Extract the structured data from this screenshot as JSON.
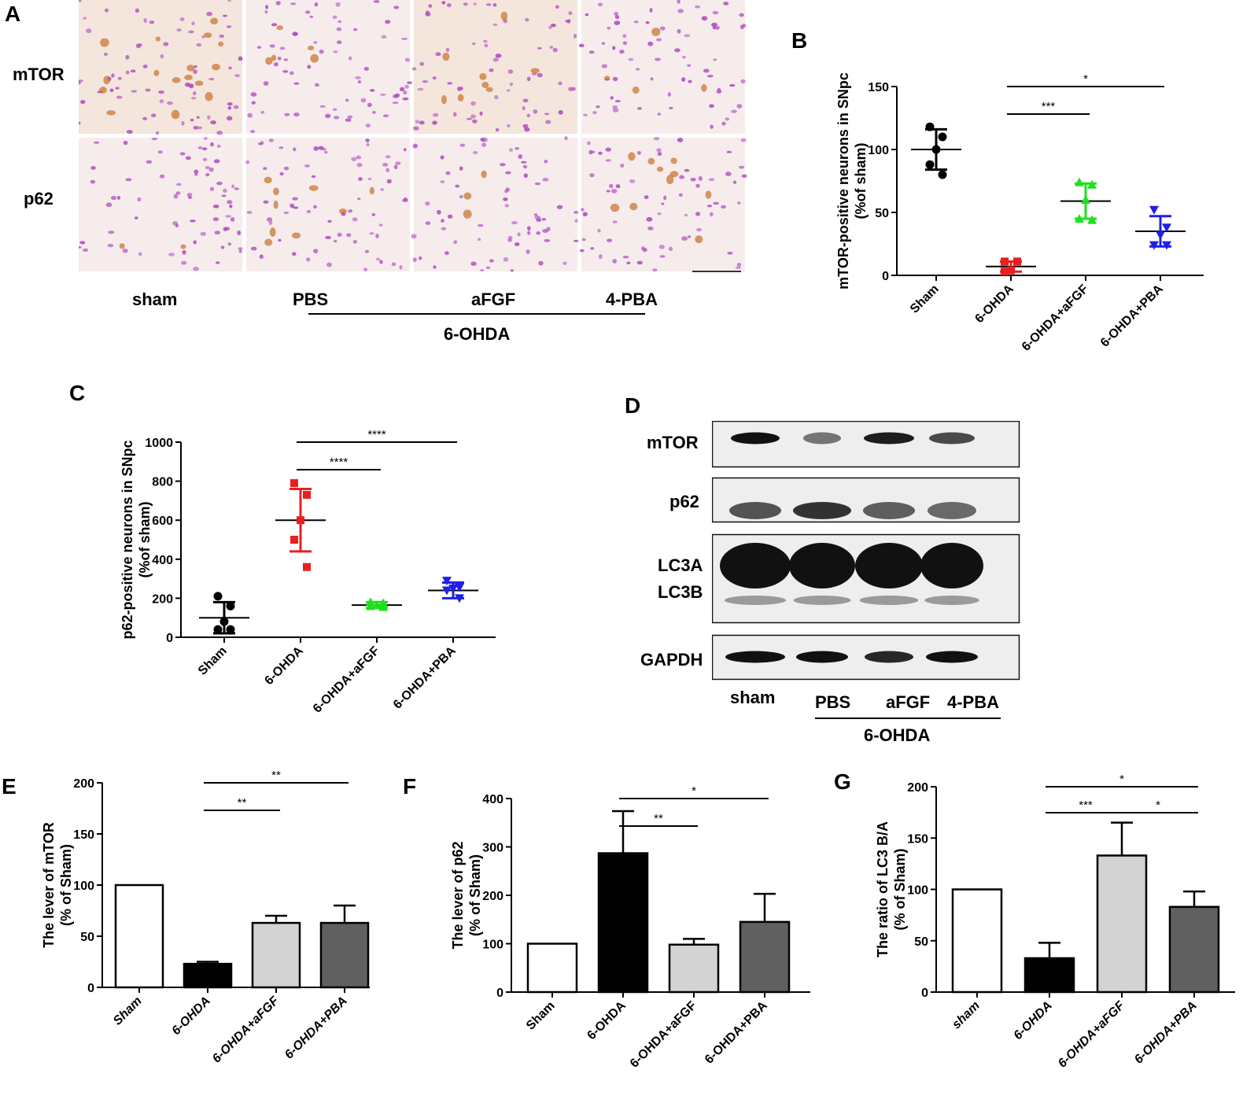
{
  "panels": {
    "A": {
      "letter": "A",
      "row_labels": [
        "mTOR",
        "p62"
      ],
      "col_labels": [
        "sham",
        "PBS",
        "aFGF",
        "4-PBA"
      ],
      "group_label": "6-OHDA"
    },
    "D": {
      "letter": "D",
      "band_labels": [
        "mTOR",
        "p62",
        "LC3A",
        "LC3B",
        "GAPDH"
      ],
      "lane_labels": [
        "sham",
        "PBS",
        "aFGF",
        "4-PBA"
      ],
      "group_label": "6-OHDA"
    }
  },
  "chart_data": [
    {
      "panel": "B",
      "type": "scatter",
      "ylabel": "mTOR-positive neurons in SNpc",
      "ylabel2": "(%of sham)",
      "categories": [
        "Sham",
        "6-OHDA",
        "6-OHDA+aFGF",
        "6-OHDA+PBA"
      ],
      "ylim": [
        0,
        150
      ],
      "yticks": [
        0,
        50,
        100,
        150
      ],
      "series": [
        {
          "category": "Sham",
          "marker": "circle",
          "color": "#000000",
          "mean": 100,
          "sd": 16,
          "points": [
            118,
            110,
            100,
            88,
            80
          ]
        },
        {
          "category": "6-OHDA",
          "marker": "square",
          "color": "#e8201f",
          "mean": 7,
          "sd": 4,
          "points": [
            11,
            11,
            4,
            3
          ]
        },
        {
          "category": "6-OHDA+aFGF",
          "marker": "triangle",
          "color": "#1fe01f",
          "mean": 59,
          "sd": 14,
          "points": [
            74,
            72,
            60,
            45,
            44
          ]
        },
        {
          "category": "6-OHDA+PBA",
          "marker": "triangle-down",
          "color": "#1f1fe8",
          "mean": 35,
          "sd": 12,
          "points": [
            52,
            38,
            32,
            24,
            24
          ]
        }
      ],
      "significance": [
        {
          "from": 1,
          "to": 2,
          "label": "***"
        },
        {
          "from": 1,
          "to": 3,
          "label": "*"
        }
      ]
    },
    {
      "panel": "C",
      "type": "scatter",
      "ylabel": "p62-positive neurons in SNpc",
      "ylabel2": "(%of sham)",
      "categories": [
        "Sham",
        "6-OHDA",
        "6-OHDA+aFGF",
        "6-OHDA+PBA"
      ],
      "ylim": [
        0,
        1000
      ],
      "yticks": [
        0,
        200,
        400,
        600,
        800,
        1000
      ],
      "series": [
        {
          "category": "Sham",
          "marker": "circle",
          "color": "#000000",
          "mean": 100,
          "sd": 80,
          "points": [
            210,
            160,
            80,
            40,
            40
          ]
        },
        {
          "category": "6-OHDA",
          "marker": "square",
          "color": "#e8201f",
          "mean": 600,
          "sd": 160,
          "points": [
            790,
            730,
            600,
            500,
            360
          ]
        },
        {
          "category": "6-OHDA+aFGF",
          "marker": "triangle",
          "color": "#1fe01f",
          "mean": 165,
          "sd": 15,
          "points": [
            180,
            175,
            165,
            160,
            155
          ]
        },
        {
          "category": "6-OHDA+PBA",
          "marker": "triangle-down",
          "color": "#1f1fe8",
          "mean": 240,
          "sd": 40,
          "points": [
            290,
            255,
            250,
            240,
            200
          ]
        }
      ],
      "significance": [
        {
          "from": 1,
          "to": 2,
          "label": "****"
        },
        {
          "from": 1,
          "to": 3,
          "label": "****"
        }
      ]
    },
    {
      "panel": "E",
      "type": "bar",
      "ylabel": "The lever of mTOR",
      "ylabel2": "(% of Sham)",
      "categories": [
        "Sham",
        "6-OHDA",
        "6-OHDA+aFGF",
        "6-OHDA+PBA"
      ],
      "ylim": [
        0,
        200
      ],
      "yticks": [
        0,
        50,
        100,
        150,
        200
      ],
      "values": [
        100,
        23,
        63,
        63
      ],
      "errors": [
        0,
        2,
        7,
        17
      ],
      "colors": [
        "#ffffff",
        "#000000",
        "#d3d3d3",
        "#606060"
      ],
      "significance": [
        {
          "from": 1,
          "to": 2,
          "label": "**"
        },
        {
          "from": 1,
          "to": 3,
          "label": "**"
        }
      ]
    },
    {
      "panel": "F",
      "type": "bar",
      "ylabel": "The lever of p62",
      "ylabel2": "(% of Sham)",
      "categories": [
        "Sham",
        "6-OHDA",
        "6-OHDA+aFGF",
        "6-OHDA+PBA"
      ],
      "ylim": [
        0,
        400
      ],
      "yticks": [
        0,
        100,
        200,
        300,
        400
      ],
      "values": [
        100,
        287,
        98,
        145
      ],
      "errors": [
        0,
        87,
        12,
        58
      ],
      "colors": [
        "#ffffff",
        "#000000",
        "#d3d3d3",
        "#606060"
      ],
      "significance": [
        {
          "from": 1,
          "to": 2,
          "label": "**"
        },
        {
          "from": 1,
          "to": 3,
          "label": "*"
        }
      ]
    },
    {
      "panel": "G",
      "type": "bar",
      "ylabel": "The ratio of LC3 B/A",
      "ylabel2": "(% of Sham)",
      "categories": [
        "sham",
        "6-OHDA",
        "6-OHDA+aFGF",
        "6-OHDA+PBA"
      ],
      "ylim": [
        0,
        200
      ],
      "yticks": [
        0,
        50,
        100,
        150,
        200
      ],
      "values": [
        100,
        33,
        133,
        83
      ],
      "errors": [
        0,
        15,
        32,
        15
      ],
      "colors": [
        "#ffffff",
        "#000000",
        "#d3d3d3",
        "#606060"
      ],
      "significance": [
        {
          "from": 1,
          "to": 2,
          "label": "***"
        },
        {
          "from": 2,
          "to": 3,
          "label": "*"
        },
        {
          "from": 1,
          "to": 3,
          "label": "*"
        }
      ]
    }
  ]
}
